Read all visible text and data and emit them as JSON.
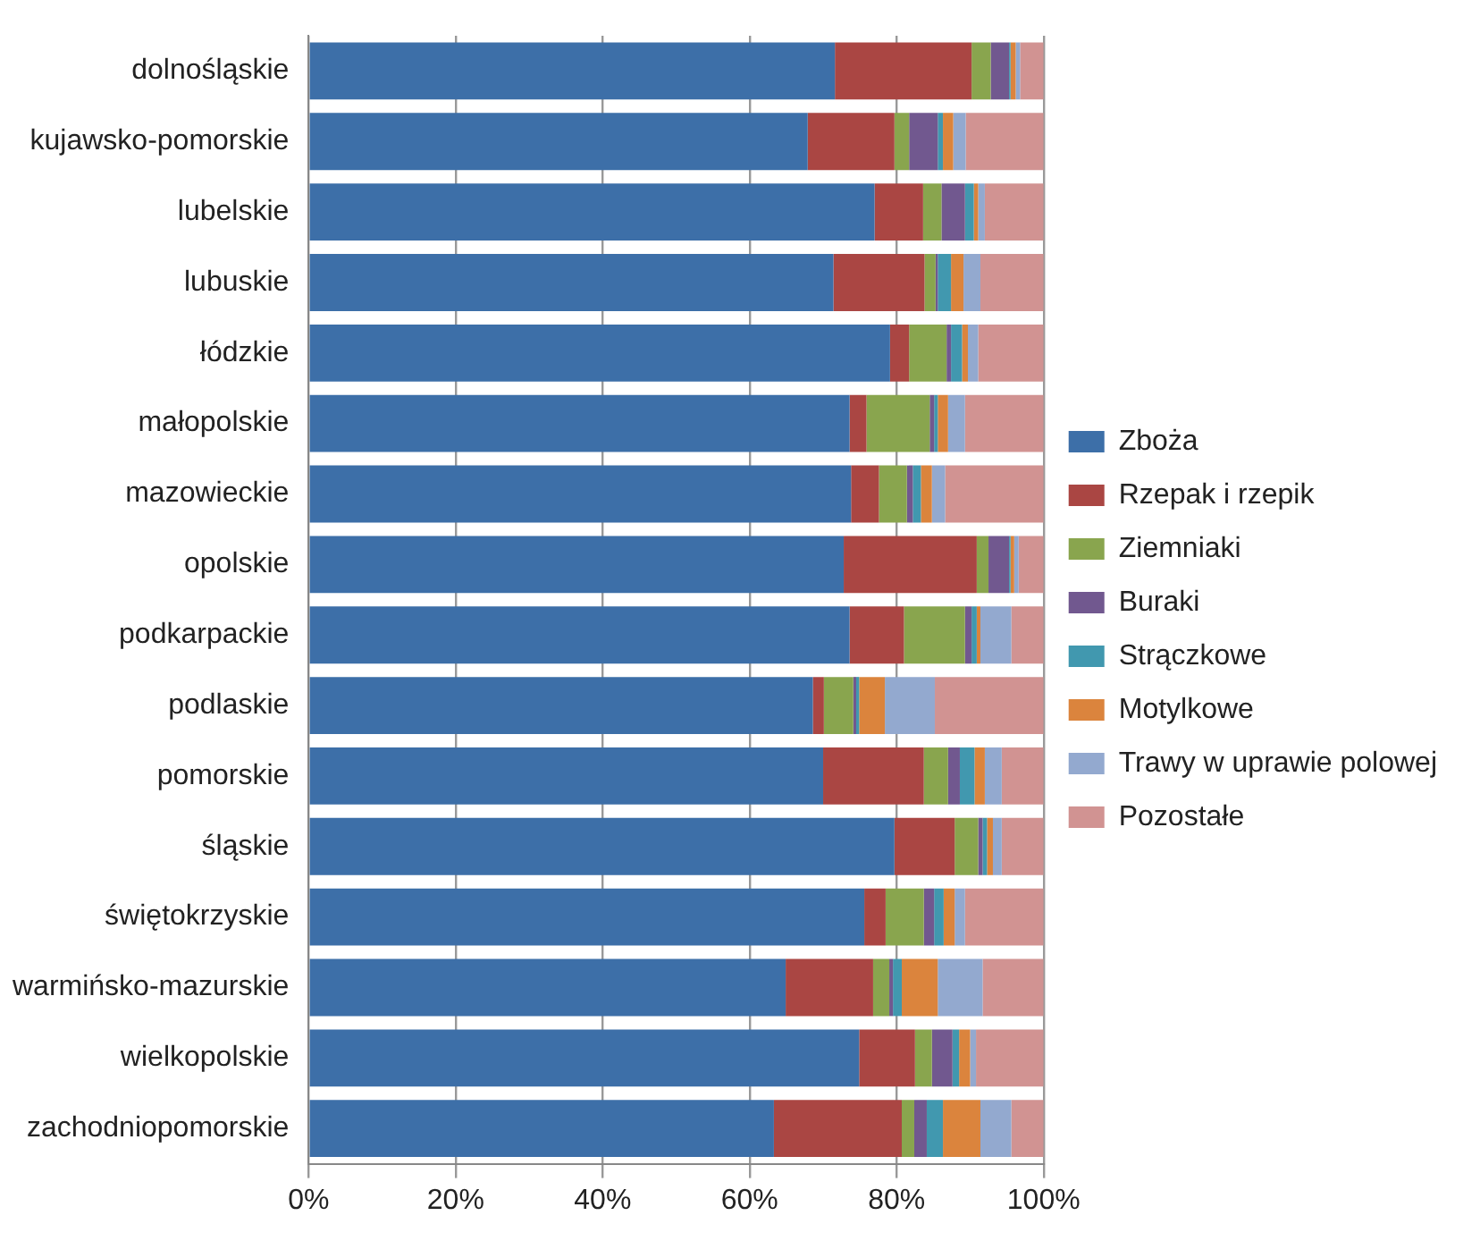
{
  "chart_data": {
    "type": "bar",
    "orientation": "horizontal",
    "stacked": true,
    "categories": [
      "dolnośląskie",
      "kujawsko-pomorskie",
      "lubelskie",
      "lubuskie",
      "łódzkie",
      "małopolskie",
      "mazowieckie",
      "opolskie",
      "podkarpackie",
      "podlaskie",
      "pomorskie",
      "śląskie",
      "świętokrzyskie",
      "warmińsko-mazurskie",
      "wielkopolskie",
      "zachodniopomorskie"
    ],
    "series": [
      {
        "name": "Zboża",
        "color": "#3d6fa8",
        "values": [
          71.6,
          67.9,
          77.0,
          71.4,
          79.1,
          73.6,
          73.8,
          72.8,
          73.6,
          68.6,
          70.0,
          79.7,
          75.6,
          64.9,
          74.9,
          63.3
        ]
      },
      {
        "name": "Rzepak i rzepik",
        "color": "#aa4643",
        "values": [
          18.6,
          11.8,
          6.6,
          12.4,
          2.6,
          2.3,
          3.8,
          18.1,
          7.4,
          1.5,
          13.7,
          8.2,
          2.9,
          11.9,
          7.6,
          17.4
        ]
      },
      {
        "name": "Ziemniaki",
        "color": "#89a54e",
        "values": [
          2.6,
          2.0,
          2.5,
          1.5,
          5.1,
          8.6,
          3.8,
          1.6,
          8.3,
          4.0,
          3.3,
          3.2,
          5.2,
          2.2,
          2.3,
          1.7
        ]
      },
      {
        "name": "Buraki",
        "color": "#71588f",
        "values": [
          2.5,
          3.9,
          3.2,
          0.3,
          0.6,
          0.6,
          0.8,
          2.8,
          0.9,
          0.4,
          1.6,
          0.6,
          1.4,
          0.5,
          2.8,
          1.7
        ]
      },
      {
        "name": "Strączkowe",
        "color": "#4198af",
        "values": [
          0.2,
          0.7,
          1.2,
          1.8,
          1.5,
          0.5,
          1.1,
          0.2,
          0.7,
          0.4,
          2.0,
          0.6,
          1.3,
          1.2,
          0.9,
          2.2
        ]
      },
      {
        "name": "Motylkowe",
        "color": "#db843d",
        "values": [
          0.7,
          1.4,
          0.6,
          1.7,
          0.8,
          1.4,
          1.5,
          0.5,
          0.5,
          3.5,
          1.4,
          0.8,
          1.5,
          4.9,
          1.5,
          5.1
        ]
      },
      {
        "name": "Trawy w uprawie polowej",
        "color": "#93a9cf",
        "values": [
          0.6,
          1.7,
          0.9,
          2.3,
          1.4,
          2.3,
          1.8,
          0.6,
          4.2,
          6.8,
          2.3,
          1.2,
          1.4,
          6.1,
          0.8,
          4.2
        ]
      },
      {
        "name": "Pozostałe",
        "color": "#d19392",
        "values": [
          3.2,
          10.6,
          8.0,
          8.6,
          8.9,
          10.7,
          13.4,
          3.4,
          4.4,
          14.8,
          5.7,
          5.7,
          10.7,
          8.3,
          9.2,
          4.4
        ]
      }
    ],
    "xlim": [
      0,
      100
    ],
    "xticks": [
      {
        "value": 0,
        "label": "0%"
      },
      {
        "value": 20,
        "label": "20%"
      },
      {
        "value": 40,
        "label": "40%"
      },
      {
        "value": 60,
        "label": "60%"
      },
      {
        "value": 80,
        "label": "80%"
      },
      {
        "value": 100,
        "label": "100%"
      }
    ],
    "grid": "x",
    "legend": "right"
  }
}
